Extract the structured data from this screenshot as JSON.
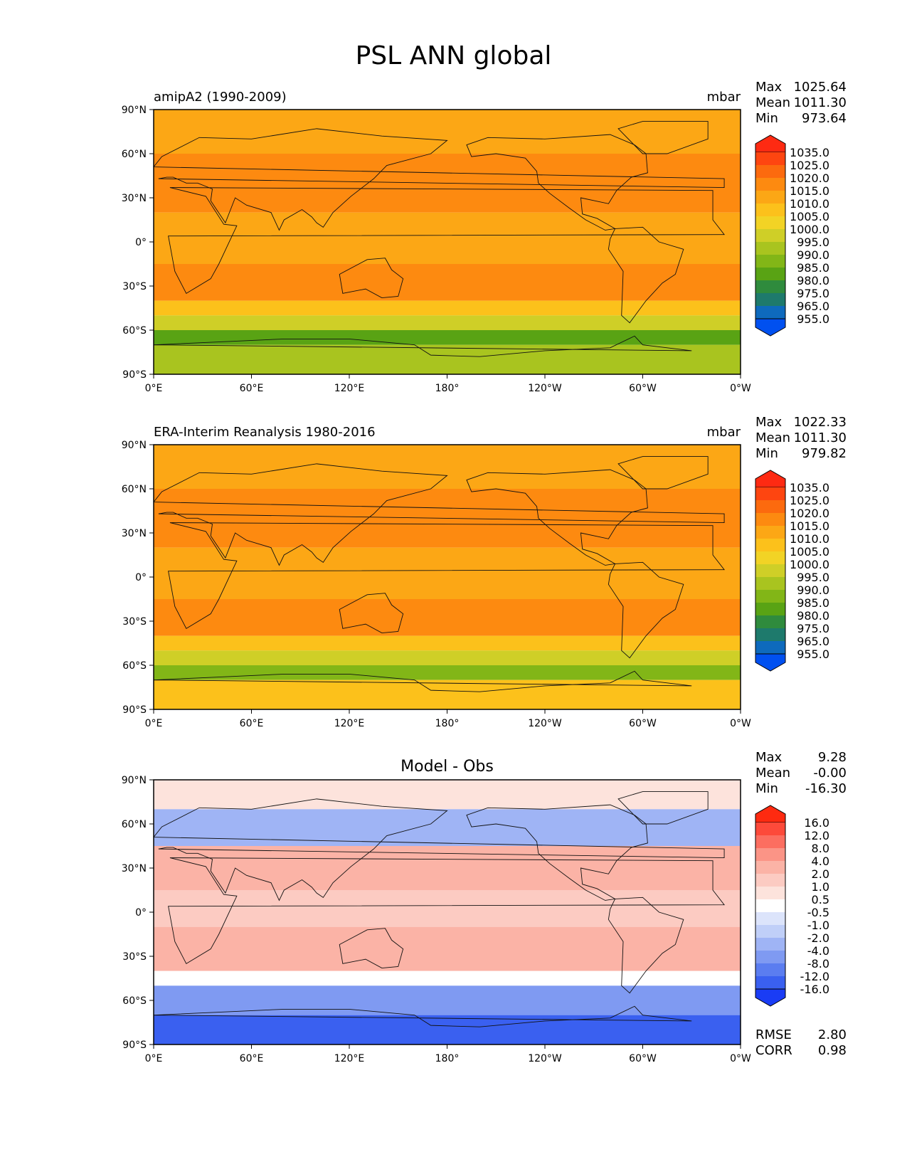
{
  "page": {
    "title": "PSL ANN global"
  },
  "panels": [
    {
      "title_left": "amipA2 (1990-2009)",
      "title_right": "mbar",
      "title_center": "",
      "stats": [
        {
          "label": "Max",
          "value": "1025.64"
        },
        {
          "label": "Mean",
          "value": "1011.30"
        },
        {
          "label": "Min",
          "value": "973.64"
        }
      ],
      "colorbar": {
        "labels": [
          "1035.0",
          "1025.0",
          "1020.0",
          "1015.0",
          "1010.0",
          "1005.0",
          "1000.0",
          "995.0",
          "990.0",
          "985.0",
          "980.0",
          "975.0",
          "965.0",
          "955.0"
        ],
        "colors": [
          "#fe2a12",
          "#fe4510",
          "#fc6a0e",
          "#fd8a10",
          "#fca715",
          "#fcc11b",
          "#f2d325",
          "#cfcf27",
          "#a9c41f",
          "#82b617",
          "#59a314",
          "#2f8b3d",
          "#1e7a6c",
          "#0e6abd",
          "#0050f0"
        ]
      },
      "extra_stats": []
    },
    {
      "title_left": "ERA-Interim Reanalysis 1980-2016",
      "title_right": "mbar",
      "title_center": "",
      "stats": [
        {
          "label": "Max",
          "value": "1022.33"
        },
        {
          "label": "Mean",
          "value": "1011.30"
        },
        {
          "label": "Min",
          "value": "979.82"
        }
      ],
      "colorbar": {
        "labels": [
          "1035.0",
          "1025.0",
          "1020.0",
          "1015.0",
          "1010.0",
          "1005.0",
          "1000.0",
          "995.0",
          "990.0",
          "985.0",
          "980.0",
          "975.0",
          "965.0",
          "955.0"
        ],
        "colors": [
          "#fe2a12",
          "#fe4510",
          "#fc6a0e",
          "#fd8a10",
          "#fca715",
          "#fcc11b",
          "#f2d325",
          "#cfcf27",
          "#a9c41f",
          "#82b617",
          "#59a314",
          "#2f8b3d",
          "#1e7a6c",
          "#0e6abd",
          "#0050f0"
        ]
      },
      "extra_stats": []
    },
    {
      "title_left": "",
      "title_right": "",
      "title_center": "Model - Obs",
      "stats": [
        {
          "label": "Max",
          "value": "9.28"
        },
        {
          "label": "Mean",
          "value": "-0.00"
        },
        {
          "label": "Min",
          "value": "-16.30"
        }
      ],
      "colorbar": {
        "labels": [
          "16.0",
          "12.0",
          "8.0",
          "4.0",
          "2.0",
          "1.0",
          "0.5",
          "-0.5",
          "-1.0",
          "-2.0",
          "-4.0",
          "-8.0",
          "-12.0",
          "-16.0"
        ],
        "colors": [
          "#fe2a10",
          "#fd4a3a",
          "#fc6e60",
          "#fb9486",
          "#fbb3a6",
          "#fccbc2",
          "#fde3dc",
          "#ffffff",
          "#dce4fb",
          "#c0cff8",
          "#9fb4f5",
          "#7f9af2",
          "#5b7df0",
          "#3a60f0",
          "#1a3cf5"
        ]
      },
      "extra_stats": [
        {
          "label": "RMSE",
          "value": "2.80"
        },
        {
          "label": "CORR",
          "value": "0.98"
        }
      ]
    }
  ],
  "chart_data": [
    {
      "type": "heatmap",
      "title": "amipA2 (1990-2009)",
      "units": "mbar",
      "x_ticks": [
        "0°E",
        "60°E",
        "120°E",
        "180°",
        "120°W",
        "60°W",
        "0°W"
      ],
      "y_ticks": [
        "90°N",
        "60°N",
        "30°N",
        "0°",
        "30°S",
        "60°S",
        "90°S"
      ],
      "xlim": [
        0,
        360
      ],
      "ylim": [
        -90,
        90
      ],
      "levels": [
        955,
        965,
        975,
        980,
        985,
        990,
        995,
        1000,
        1005,
        1010,
        1015,
        1020,
        1025,
        1035
      ],
      "stats": {
        "max": 1025.64,
        "mean": 1011.3,
        "min": 973.64
      },
      "zonal_bands": [
        {
          "lat": [
            60,
            90
          ],
          "value": 1014
        },
        {
          "lat": [
            20,
            60
          ],
          "value": 1017
        },
        {
          "lat": [
            -15,
            20
          ],
          "value": 1011
        },
        {
          "lat": [
            -40,
            -15
          ],
          "value": 1019
        },
        {
          "lat": [
            -50,
            -40
          ],
          "value": 1008
        },
        {
          "lat": [
            -60,
            -50
          ],
          "value": 995
        },
        {
          "lat": [
            -70,
            -60
          ],
          "value": 982
        },
        {
          "lat": [
            -90,
            -70
          ],
          "value": 990
        }
      ]
    },
    {
      "type": "heatmap",
      "title": "ERA-Interim Reanalysis 1980-2016",
      "units": "mbar",
      "x_ticks": [
        "0°E",
        "60°E",
        "120°E",
        "180°",
        "120°W",
        "60°W",
        "0°W"
      ],
      "y_ticks": [
        "90°N",
        "60°N",
        "30°N",
        "0°",
        "30°S",
        "60°S",
        "90°S"
      ],
      "xlim": [
        0,
        360
      ],
      "ylim": [
        -90,
        90
      ],
      "levels": [
        955,
        965,
        975,
        980,
        985,
        990,
        995,
        1000,
        1005,
        1010,
        1015,
        1020,
        1025,
        1035
      ],
      "stats": {
        "max": 1022.33,
        "mean": 1011.3,
        "min": 979.82
      },
      "zonal_bands": [
        {
          "lat": [
            60,
            90
          ],
          "value": 1013
        },
        {
          "lat": [
            20,
            60
          ],
          "value": 1016
        },
        {
          "lat": [
            -15,
            20
          ],
          "value": 1010
        },
        {
          "lat": [
            -40,
            -15
          ],
          "value": 1017
        },
        {
          "lat": [
            -50,
            -40
          ],
          "value": 1007
        },
        {
          "lat": [
            -60,
            -50
          ],
          "value": 995
        },
        {
          "lat": [
            -70,
            -60
          ],
          "value": 985
        },
        {
          "lat": [
            -90,
            -70
          ],
          "value": 1005
        }
      ]
    },
    {
      "type": "heatmap",
      "title": "Model - Obs",
      "x_ticks": [
        "0°E",
        "60°E",
        "120°E",
        "180°",
        "120°W",
        "60°W",
        "0°W"
      ],
      "y_ticks": [
        "90°N",
        "60°N",
        "30°N",
        "0°",
        "30°S",
        "60°S",
        "90°S"
      ],
      "xlim": [
        0,
        360
      ],
      "ylim": [
        -90,
        90
      ],
      "levels": [
        -16,
        -12,
        -8,
        -4,
        -2,
        -1,
        -0.5,
        0.5,
        1,
        2,
        4,
        8,
        12,
        16
      ],
      "stats": {
        "max": 9.28,
        "mean": -0.0,
        "min": -16.3,
        "rmse": 2.8,
        "corr": 0.98
      },
      "zonal_bands": [
        {
          "lat": [
            70,
            90
          ],
          "value": 0.8
        },
        {
          "lat": [
            45,
            70
          ],
          "value": -2.5
        },
        {
          "lat": [
            15,
            45
          ],
          "value": 3
        },
        {
          "lat": [
            -10,
            15
          ],
          "value": 1.2
        },
        {
          "lat": [
            -40,
            -10
          ],
          "value": 2
        },
        {
          "lat": [
            -50,
            -40
          ],
          "value": 0
        },
        {
          "lat": [
            -70,
            -50
          ],
          "value": -6
        },
        {
          "lat": [
            -90,
            -70
          ],
          "value": -14
        }
      ]
    }
  ]
}
